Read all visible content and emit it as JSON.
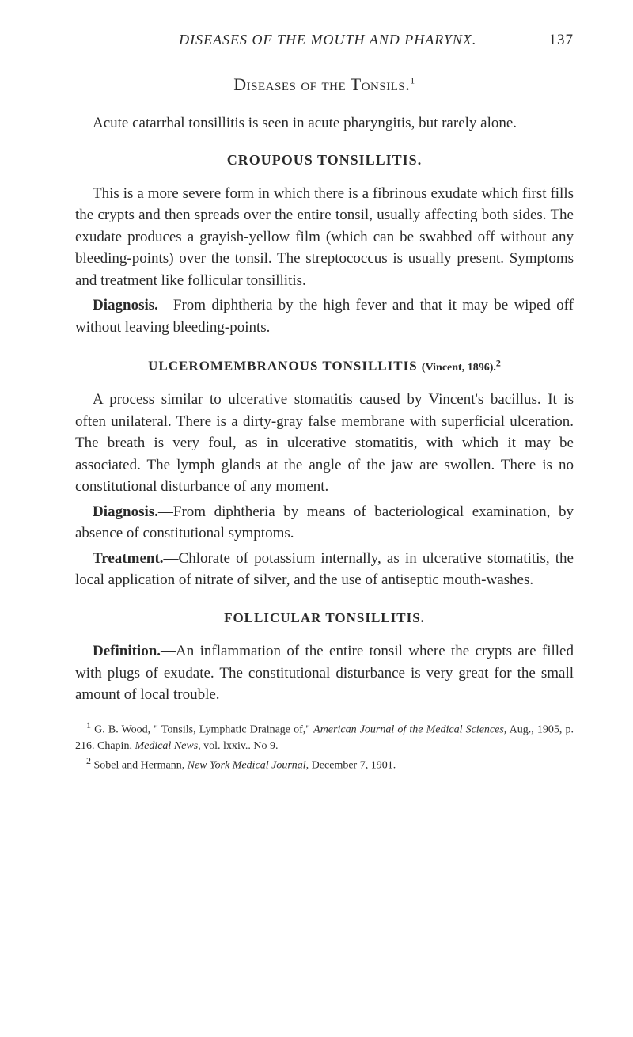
{
  "header": {
    "running_title": "DISEASES OF THE MOUTH AND PHARYNX.",
    "page_number": "137"
  },
  "main_title": "Diseases of the Tonsils.",
  "main_title_sup": "1",
  "intro_para": "Acute catarrhal tonsillitis is seen in acute pharyngitis, but rarely alone.",
  "section1": {
    "title": "CROUPOUS TONSILLITIS.",
    "para1": "This is a more severe form in which there is a fibrinous exudate which first fills the crypts and then spreads over the entire tonsil, usually affecting both sides. The exudate produces a grayish-yellow film (which can be swabbed off without any bleeding-points) over the tonsil. The streptococcus is usually present. Symptoms and treatment like follicular tonsillitis.",
    "diagnosis_label": "Diagnosis.",
    "diagnosis_text": "—From diphtheria by the high fever and that it may be wiped off without leaving bleeding-points."
  },
  "section2": {
    "title": "ULCEROMEMBRANOUS TONSILLITIS",
    "citation": "(Vincent, 1896).",
    "citation_sup": "2",
    "para1": "A process similar to ulcerative stomatitis caused by Vincent's bacillus. It is often unilateral. There is a dirty-gray false membrane with superficial ulceration. The breath is very foul, as in ulcerative stomatitis, with which it may be associated. The lymph glands at the angle of the jaw are swollen. There is no constitutional disturbance of any moment.",
    "diagnosis_label": "Diagnosis.",
    "diagnosis_text": "—From diphtheria by means of bacteriological examination, by absence of constitutional symptoms.",
    "treatment_label": "Treatment.",
    "treatment_text": "—Chlorate of potassium internally, as in ulcerative stomatitis, the local application of nitrate of silver, and the use of antiseptic mouth-washes."
  },
  "section3": {
    "title": "FOLLICULAR TONSILLITIS.",
    "definition_label": "Definition.",
    "definition_text": "—An inflammation of the entire tonsil where the crypts are filled with plugs of exudate. The constitutional disturbance is very great for the small amount of local trouble."
  },
  "footnotes": {
    "note1_sup": "1",
    "note1_text_a": " G. B. Wood, \" Tonsils, Lymphatic Drainage of,\" ",
    "note1_italic_a": "American Journal of the Medical Sciences,",
    "note1_text_b": " Aug., 1905, p. 216. Chapin, ",
    "note1_italic_b": "Medical News,",
    "note1_text_c": " vol. lxxiv.. No 9.",
    "note2_sup": "2",
    "note2_text_a": " Sobel and Hermann, ",
    "note2_italic_a": "New York Medical Journal,",
    "note2_text_b": " December 7, 1901."
  }
}
